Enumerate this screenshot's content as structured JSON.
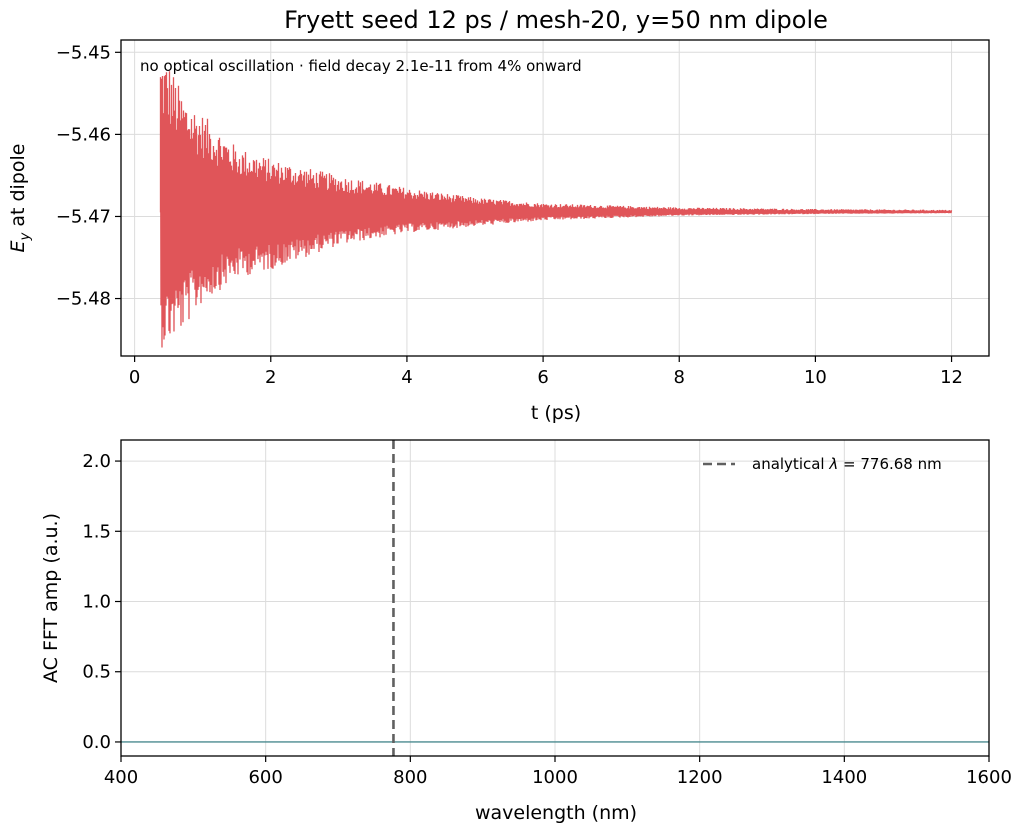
{
  "chart_data": [
    {
      "type": "line",
      "title": "Fryett seed 12 ps / mesh-20, y=50 nm dipole",
      "xlabel": "t (ps)",
      "ylabel_main": "E",
      "ylabel_sub": "y",
      "ylabel_rest": " at dipole",
      "xlim": [
        -0.2,
        12.55
      ],
      "ylim": [
        -5.487,
        -5.4485
      ],
      "xticks": [
        0,
        2,
        4,
        6,
        8,
        10,
        12
      ],
      "xtick_labels": [
        "0",
        "2",
        "4",
        "6",
        "8",
        "10",
        "12"
      ],
      "yticks": [
        -5.45,
        -5.46,
        -5.47,
        -5.48
      ],
      "ytick_labels": [
        "−5.45",
        "−5.46",
        "−5.47",
        "−5.48"
      ],
      "grid": true,
      "annotation": "no optical oscillation  ·  field decay 2.1e-11 from 4% onward",
      "series": [
        {
          "color": "#e05559",
          "t_start": 0.38,
          "t_end": 12.0,
          "baseline": -5.4695,
          "envelope": [
            {
              "t": 0.4,
              "upper": -5.45,
              "lower": -5.486
            },
            {
              "t": 0.5,
              "upper": -5.451,
              "lower": -5.4855
            },
            {
              "t": 0.7,
              "upper": -5.455,
              "lower": -5.484
            },
            {
              "t": 1.0,
              "upper": -5.4575,
              "lower": -5.4805
            },
            {
              "t": 1.5,
              "upper": -5.4615,
              "lower": -5.4775
            },
            {
              "t": 2.0,
              "upper": -5.463,
              "lower": -5.4765
            },
            {
              "t": 3.0,
              "upper": -5.465,
              "lower": -5.4735
            },
            {
              "t": 4.0,
              "upper": -5.4665,
              "lower": -5.472
            },
            {
              "t": 5.0,
              "upper": -5.4677,
              "lower": -5.4712
            },
            {
              "t": 6.0,
              "upper": -5.4684,
              "lower": -5.4705
            },
            {
              "t": 8.0,
              "upper": -5.4689,
              "lower": -5.4699
            },
            {
              "t": 10.0,
              "upper": -5.4691,
              "lower": -5.4697
            },
            {
              "t": 12.0,
              "upper": -5.4692,
              "lower": -5.4696
            }
          ]
        }
      ]
    },
    {
      "type": "line",
      "xlabel": "wavelength (nm)",
      "ylabel": "AC FFT amp (a.u.)",
      "xlim": [
        400,
        1600
      ],
      "ylim": [
        -0.1,
        2.15
      ],
      "xticks": [
        400,
        600,
        800,
        1000,
        1200,
        1400,
        1600
      ],
      "xtick_labels": [
        "400",
        "600",
        "800",
        "1000",
        "1200",
        "1400",
        "1600"
      ],
      "yticks": [
        0.0,
        0.5,
        1.0,
        1.5,
        2.0
      ],
      "ytick_labels": [
        "0.0",
        "0.5",
        "1.0",
        "1.5",
        "2.0"
      ],
      "grid": true,
      "legend_position": "top-right",
      "series": [
        {
          "x": [
            400,
            1600
          ],
          "values": [
            0,
            0
          ],
          "color": "#4a8a8f"
        }
      ],
      "vline": {
        "x": 776.68,
        "color": "#606060",
        "style": "dashed",
        "legend_prefix": "analytical ",
        "legend_symbol": "λ",
        "legend_suffix": " = 776.68 nm"
      }
    }
  ]
}
